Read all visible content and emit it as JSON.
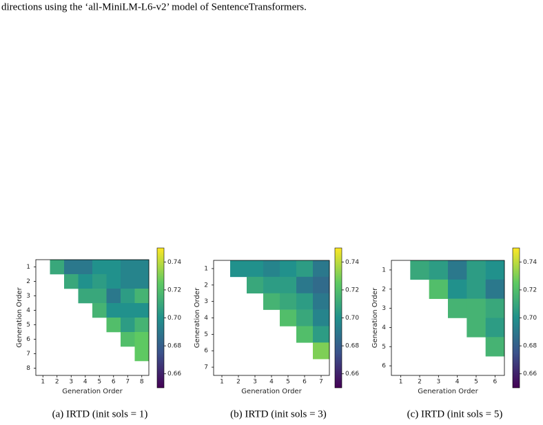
{
  "header_text": "directions using the ‘all-MiniLM-L6-v2’ model of SentenceTransformers.",
  "chart_data": [
    {
      "type": "heatmap",
      "caption": "(a) IRTD (init sols = 1)",
      "xlabel": "Generation Order",
      "ylabel": "Generation Order",
      "x_categories": [
        "1",
        "2",
        "3",
        "4",
        "5",
        "6",
        "7",
        "8"
      ],
      "y_categories": [
        "1",
        "2",
        "3",
        "4",
        "5",
        "6",
        "7",
        "8"
      ],
      "z": [
        [
          null,
          0.71,
          0.69,
          0.69,
          0.7,
          0.7,
          0.695,
          0.695
        ],
        [
          null,
          null,
          0.71,
          0.7,
          0.705,
          0.7,
          0.695,
          0.695
        ],
        [
          null,
          null,
          null,
          0.71,
          0.71,
          0.69,
          0.705,
          0.715
        ],
        [
          null,
          null,
          null,
          null,
          0.715,
          0.7,
          0.7,
          0.7
        ],
        [
          null,
          null,
          null,
          null,
          null,
          0.72,
          0.705,
          0.715
        ],
        [
          null,
          null,
          null,
          null,
          null,
          null,
          0.72,
          0.725
        ],
        [
          null,
          null,
          null,
          null,
          null,
          null,
          null,
          0.725
        ],
        [
          null,
          null,
          null,
          null,
          null,
          null,
          null,
          null
        ]
      ],
      "colormap": "viridis",
      "zlim": [
        0.65,
        0.75
      ],
      "zticks": [
        0.66,
        0.68,
        {
          "value": 0.7,
          "label": "0.70"
        },
        0.72,
        0.74
      ]
    },
    {
      "type": "heatmap",
      "caption": "(b) IRTD (init sols = 3)",
      "xlabel": "Generation Order",
      "ylabel": "Generation Order",
      "x_categories": [
        "1",
        "2",
        "3",
        "4",
        "5",
        "6",
        "7"
      ],
      "y_categories": [
        "1",
        "2",
        "3",
        "4",
        "5",
        "6",
        "7"
      ],
      "z": [
        [
          null,
          0.7,
          0.7,
          0.695,
          0.7,
          0.705,
          0.69
        ],
        [
          null,
          null,
          0.71,
          0.705,
          0.705,
          0.69,
          0.685
        ],
        [
          null,
          null,
          null,
          0.715,
          0.71,
          0.705,
          0.69
        ],
        [
          null,
          null,
          null,
          null,
          0.72,
          0.71,
          0.695
        ],
        [
          null,
          null,
          null,
          null,
          null,
          0.72,
          0.705
        ],
        [
          null,
          null,
          null,
          null,
          null,
          null,
          0.73
        ],
        [
          null,
          null,
          null,
          null,
          null,
          null,
          null
        ]
      ],
      "colormap": "viridis",
      "zlim": [
        0.65,
        0.75
      ],
      "zticks": [
        0.66,
        0.68,
        {
          "value": 0.7,
          "label": "0.70"
        },
        0.72,
        0.74
      ]
    },
    {
      "type": "heatmap",
      "caption": "(c) IRTD (init sols = 5)",
      "xlabel": "Generation Order",
      "ylabel": "Generation Order",
      "x_categories": [
        "1",
        "2",
        "3",
        "4",
        "5",
        "6"
      ],
      "y_categories": [
        "1",
        "2",
        "3",
        "4",
        "5",
        "6"
      ],
      "z": [
        [
          null,
          0.71,
          0.705,
          0.69,
          0.705,
          0.7
        ],
        [
          null,
          null,
          0.72,
          0.7,
          0.705,
          0.69
        ],
        [
          null,
          null,
          null,
          0.715,
          0.715,
          0.71
        ],
        [
          null,
          null,
          null,
          null,
          0.715,
          0.705
        ],
        [
          null,
          null,
          null,
          null,
          null,
          0.715
        ],
        [
          null,
          null,
          null,
          null,
          null,
          null
        ]
      ],
      "colormap": "viridis",
      "zlim": [
        0.65,
        0.75
      ],
      "zticks": [
        0.66,
        0.68,
        {
          "value": 0.7,
          "label": "0.70"
        },
        0.72,
        0.74
      ]
    }
  ]
}
